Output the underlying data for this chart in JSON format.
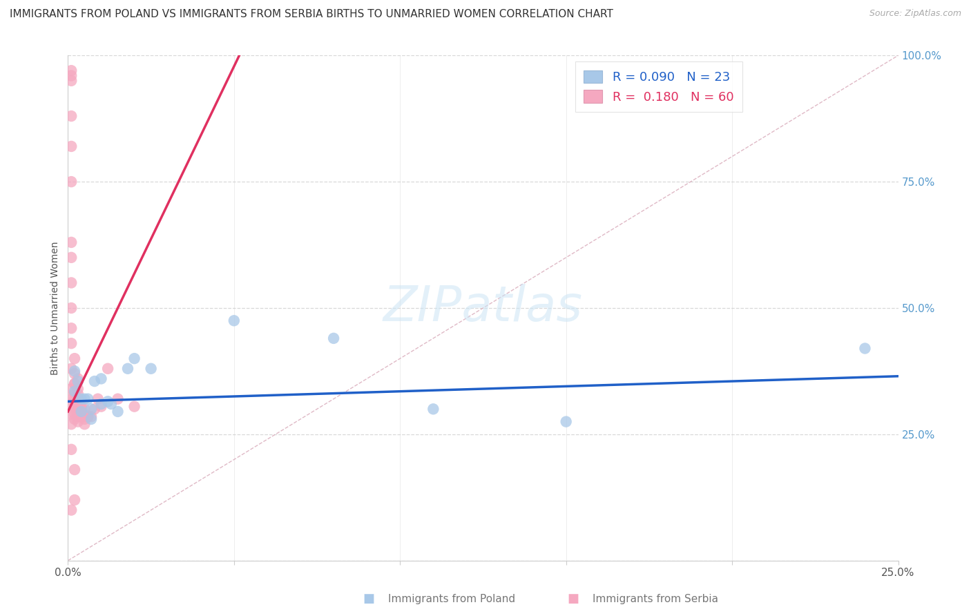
{
  "title": "IMMIGRANTS FROM POLAND VS IMMIGRANTS FROM SERBIA BIRTHS TO UNMARRIED WOMEN CORRELATION CHART",
  "source": "Source: ZipAtlas.com",
  "ylabel": "Births to Unmarried Women",
  "xlabel_poland": "Immigrants from Poland",
  "xlabel_serbia": "Immigrants from Serbia",
  "watermark": "ZIPatlas",
  "legend_poland_r": "0.090",
  "legend_poland_n": "23",
  "legend_serbia_r": "0.180",
  "legend_serbia_n": "60",
  "xlim": [
    0.0,
    0.25
  ],
  "ylim": [
    0.0,
    1.0
  ],
  "xticks": [
    0.0,
    0.05,
    0.1,
    0.15,
    0.2,
    0.25
  ],
  "yticks_right": [
    0.0,
    0.25,
    0.5,
    0.75,
    1.0
  ],
  "ytick_labels_right": [
    "",
    "25.0%",
    "50.0%",
    "75.0%",
    "100.0%"
  ],
  "color_poland": "#a8c8e8",
  "color_serbia": "#f5a8c0",
  "color_trend_poland": "#2060c8",
  "color_trend_serbia": "#e03060",
  "color_diagonal": "#d8a8b8",
  "color_grid": "#d8d8d8",
  "poland_x": [
    0.002,
    0.002,
    0.003,
    0.004,
    0.004,
    0.005,
    0.006,
    0.007,
    0.007,
    0.008,
    0.01,
    0.01,
    0.012,
    0.013,
    0.015,
    0.018,
    0.02,
    0.025,
    0.05,
    0.08,
    0.11,
    0.15,
    0.24
  ],
  "poland_y": [
    0.335,
    0.375,
    0.355,
    0.295,
    0.32,
    0.32,
    0.32,
    0.28,
    0.3,
    0.355,
    0.36,
    0.31,
    0.315,
    0.31,
    0.295,
    0.38,
    0.4,
    0.38,
    0.475,
    0.44,
    0.3,
    0.275,
    0.42
  ],
  "serbia_x": [
    0.001,
    0.001,
    0.001,
    0.001,
    0.001,
    0.001,
    0.001,
    0.001,
    0.001,
    0.001,
    0.001,
    0.001,
    0.001,
    0.001,
    0.001,
    0.001,
    0.001,
    0.001,
    0.001,
    0.001,
    0.002,
    0.002,
    0.002,
    0.002,
    0.002,
    0.002,
    0.002,
    0.002,
    0.002,
    0.002,
    0.002,
    0.002,
    0.003,
    0.003,
    0.003,
    0.003,
    0.003,
    0.003,
    0.003,
    0.003,
    0.003,
    0.004,
    0.004,
    0.004,
    0.004,
    0.004,
    0.005,
    0.005,
    0.005,
    0.005,
    0.005,
    0.006,
    0.006,
    0.007,
    0.008,
    0.009,
    0.01,
    0.012,
    0.015,
    0.02
  ],
  "serbia_y": [
    0.97,
    0.96,
    0.95,
    0.88,
    0.82,
    0.75,
    0.63,
    0.6,
    0.55,
    0.5,
    0.46,
    0.43,
    0.38,
    0.34,
    0.32,
    0.31,
    0.29,
    0.27,
    0.22,
    0.1,
    0.4,
    0.37,
    0.35,
    0.33,
    0.35,
    0.32,
    0.305,
    0.29,
    0.3,
    0.28,
    0.18,
    0.12,
    0.36,
    0.34,
    0.33,
    0.32,
    0.31,
    0.3,
    0.295,
    0.285,
    0.275,
    0.3,
    0.3,
    0.305,
    0.3,
    0.285,
    0.29,
    0.285,
    0.3,
    0.28,
    0.27,
    0.285,
    0.285,
    0.285,
    0.3,
    0.32,
    0.305,
    0.38,
    0.32,
    0.305
  ],
  "title_fontsize": 11,
  "source_fontsize": 9,
  "ylabel_fontsize": 10,
  "tick_fontsize": 11,
  "legend_fontsize": 13,
  "watermark_fontsize": 52
}
